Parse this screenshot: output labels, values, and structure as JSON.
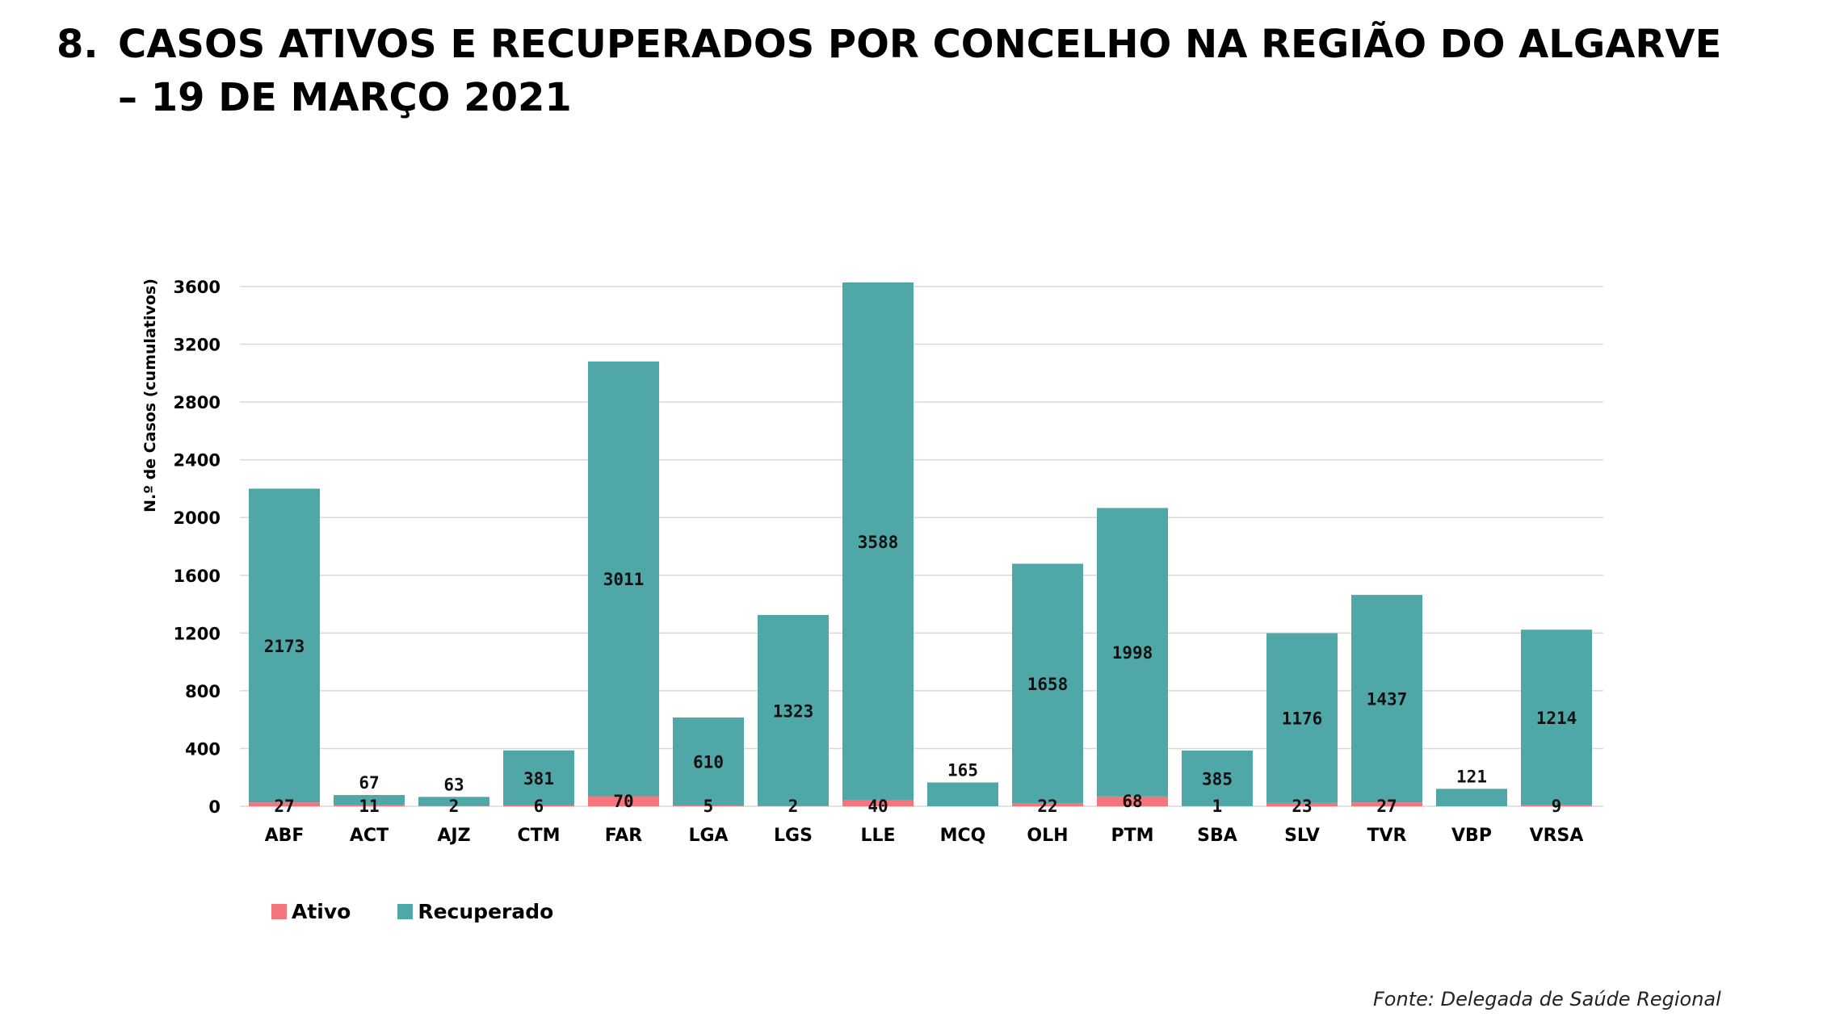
{
  "slide": {
    "number": "8.",
    "title_line1": "CASOS ATIVOS E RECUPERADOS POR CONCELHO NA REGIÃO DO ALGARVE",
    "title_line2": "– 19 DE MARÇO 2021"
  },
  "source": "Fonte: Delegada de Saúde Regional",
  "colors": {
    "ativo": "#f4757c",
    "recuperado": "#4fa7a7",
    "grid": "#d9d9d9"
  },
  "chart_data": {
    "type": "bar",
    "stacked": true,
    "title": "",
    "xlabel": "",
    "ylabel": "N.º de Casos (cumulativos)",
    "ylim": [
      0,
      3600
    ],
    "yticks": [
      0,
      400,
      800,
      1200,
      1600,
      2000,
      2400,
      2800,
      3200,
      3600
    ],
    "grid": true,
    "legend_position": "bottom-left",
    "categories": [
      "ABF",
      "ACT",
      "AJZ",
      "CTM",
      "FAR",
      "LGA",
      "LGS",
      "LLE",
      "MCQ",
      "OLH",
      "PTM",
      "SBA",
      "SLV",
      "TVR",
      "VBP",
      "VRSA"
    ],
    "series": [
      {
        "name": "Ativo",
        "values": [
          27,
          11,
          2,
          6,
          70,
          5,
          2,
          40,
          0,
          22,
          68,
          1,
          23,
          27,
          0,
          9
        ],
        "labels": [
          "27",
          "11",
          "2",
          "6",
          "70",
          "5",
          "2",
          "40",
          "",
          "22",
          "68",
          "1",
          "23",
          "27",
          "",
          "9"
        ]
      },
      {
        "name": "Recuperado",
        "values": [
          2173,
          67,
          63,
          381,
          3011,
          610,
          1323,
          3588,
          165,
          1658,
          1998,
          385,
          1176,
          1437,
          121,
          1214
        ],
        "labels": [
          "2173",
          "67",
          "63",
          "381",
          "3011",
          "610",
          "1323",
          "3588",
          "165",
          "1658",
          "1998",
          "385",
          "1176",
          "1437",
          "121",
          "1214"
        ]
      }
    ]
  }
}
